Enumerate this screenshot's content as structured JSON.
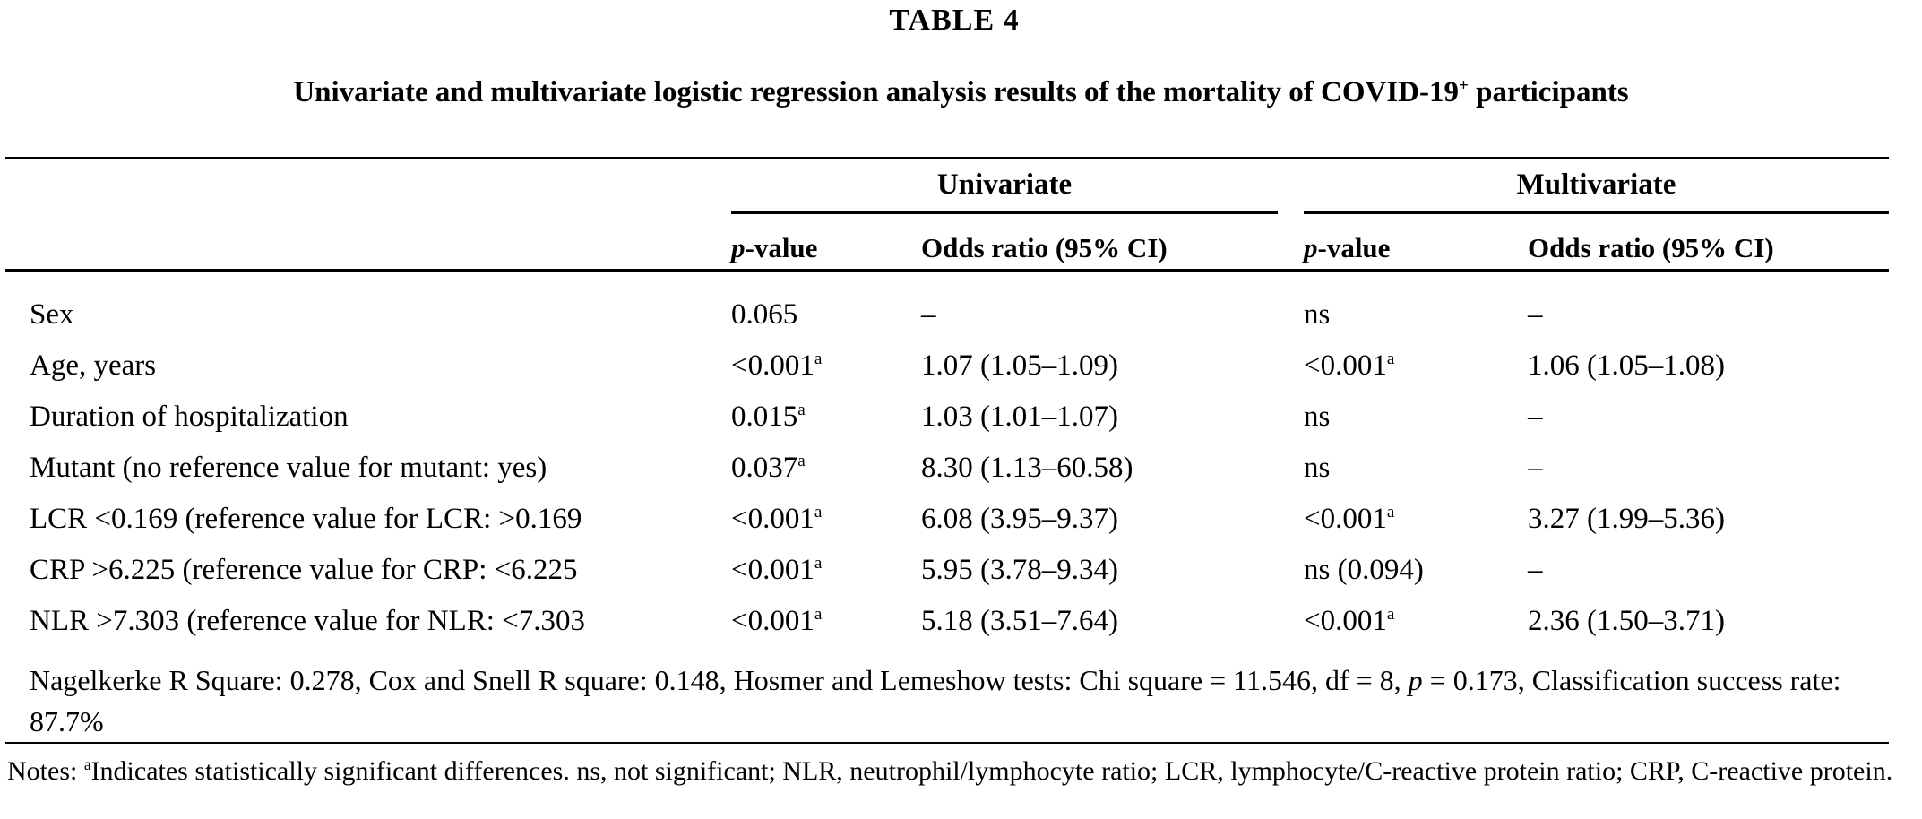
{
  "page": {
    "background": "#ffffff",
    "text_color": "#000000"
  },
  "title": "TABLE 4",
  "caption": {
    "before_sup": "Univariate and multivariate logistic regression analysis results of the mortality of COVID-19",
    "sup": "+",
    "after_sup": " participants"
  },
  "table": {
    "groups": {
      "univariate": "Univariate",
      "multivariate": "Multivariate"
    },
    "columns": {
      "p_italic": "p",
      "p_rest": "-value",
      "odds_ratio": "Odds ratio (95% CI)"
    },
    "rows": [
      {
        "label": "Sex",
        "uni_p": "0.065",
        "uni_p_sup": "",
        "uni_or": "–",
        "multi_p": "ns",
        "multi_p_sup": "",
        "multi_or": "–"
      },
      {
        "label": "Age, years",
        "uni_p": "<0.001",
        "uni_p_sup": "a",
        "uni_or": "1.07 (1.05–1.09)",
        "multi_p": "<0.001",
        "multi_p_sup": "a",
        "multi_or": "1.06 (1.05–1.08)"
      },
      {
        "label": "Duration of hospitalization",
        "uni_p": "0.015",
        "uni_p_sup": "a",
        "uni_or": "1.03 (1.01–1.07)",
        "multi_p": "ns",
        "multi_p_sup": "",
        "multi_or": "–"
      },
      {
        "label": "Mutant (no reference value for mutant: yes)",
        "uni_p": "0.037",
        "uni_p_sup": "a",
        "uni_or": "8.30 (1.13–60.58)",
        "multi_p": "ns",
        "multi_p_sup": "",
        "multi_or": "–"
      },
      {
        "label": "LCR <0.169 (reference value for LCR: >0.169",
        "uni_p": "<0.001",
        "uni_p_sup": "a",
        "uni_or": "6.08 (3.95–9.37)",
        "multi_p": "<0.001",
        "multi_p_sup": "a",
        "multi_or": "3.27 (1.99–5.36)"
      },
      {
        "label": "CRP >6.225 (reference value for CRP: <6.225",
        "uni_p": "<0.001",
        "uni_p_sup": "a",
        "uni_or": "5.95 (3.78–9.34)",
        "multi_p": "ns (0.094)",
        "multi_p_sup": "",
        "multi_or": "–"
      },
      {
        "label": "NLR >7.303 (reference value for NLR: <7.303",
        "uni_p": "<0.001",
        "uni_p_sup": "a",
        "uni_or": "5.18 (3.51–7.64)",
        "multi_p": "<0.001",
        "multi_p_sup": "a",
        "multi_or": "2.36 (1.50–3.71)"
      }
    ],
    "model_summary": {
      "before_p": "Nagelkerke R Square: 0.278, Cox and Snell R square: 0.148, Hosmer and Lemeshow tests: Chi square = 11.546, df = 8, ",
      "p": "p",
      "after_p": " = 0.173, Classification success rate: 87.7%"
    }
  },
  "notes": {
    "prefix": "Notes: ",
    "sup": "a",
    "body": "Indicates statistically significant differences. ns, not significant; NLR, neutrophil/lymphocyte ratio; LCR, lymphocyte/C-reactive protein ratio; CRP, C-reactive protein."
  }
}
